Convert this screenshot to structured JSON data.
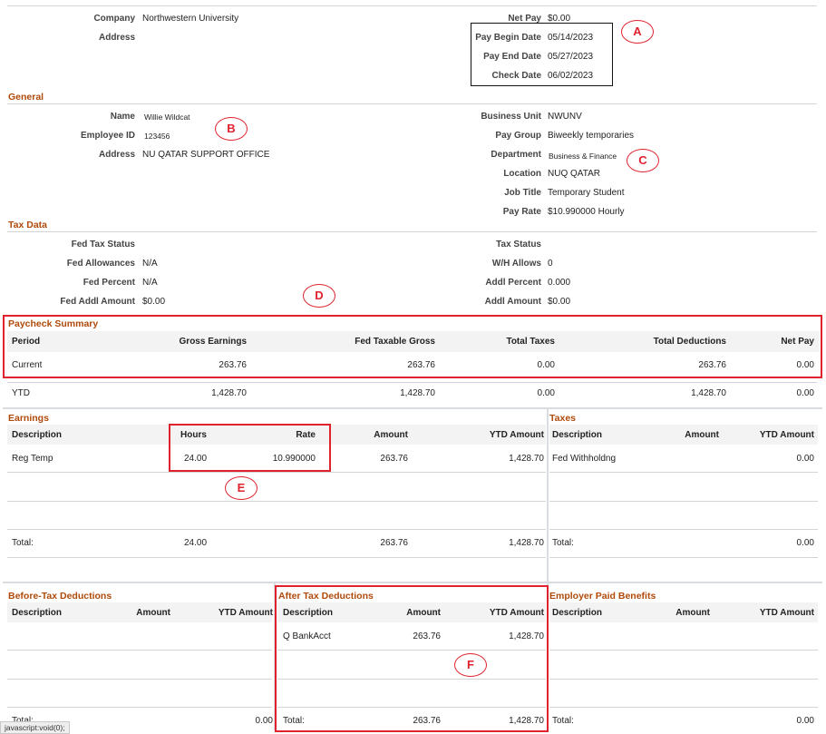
{
  "header": {
    "company_label": "Company",
    "company_value": "Northwestern University",
    "address_label": "Address",
    "address_value": "",
    "netpay_label": "Net Pay",
    "netpay_value": "$0.00",
    "pay_begin_label": "Pay Begin Date",
    "pay_begin_value": "05/14/2023",
    "pay_end_label": "Pay End Date",
    "pay_end_value": "05/27/2023",
    "check_date_label": "Check Date",
    "check_date_value": "06/02/2023"
  },
  "general": {
    "title": "General",
    "name_label": "Name",
    "name_value": "Willie Wildcat",
    "empid_label": "Employee ID",
    "empid_value": "123456",
    "address_label": "Address",
    "address_value": "NU QATAR SUPPORT OFFICE",
    "bu_label": "Business Unit",
    "bu_value": "NWUNV",
    "paygroup_label": "Pay Group",
    "paygroup_value": "Biweekly temporaries",
    "dept_label": "Department",
    "dept_value": "Business & Finance",
    "location_label": "Location",
    "location_value": "NUQ QATAR",
    "jobtitle_label": "Job Title",
    "jobtitle_value": "Temporary Student",
    "payrate_label": "Pay Rate",
    "payrate_value": "$10.990000 Hourly"
  },
  "taxdata": {
    "title": "Tax Data",
    "fedstatus_label": "Fed Tax Status",
    "fedstatus_value": "",
    "fedallow_label": "Fed Allowances",
    "fedallow_value": "N/A",
    "fedpct_label": "Fed Percent",
    "fedpct_value": "N/A",
    "fedaddl_label": "Fed Addl Amount",
    "fedaddl_value": "$0.00",
    "taxstatus_label": "Tax Status",
    "taxstatus_value": "",
    "whallow_label": "W/H Allows",
    "whallow_value": "0",
    "addlpct_label": "Addl Percent",
    "addlpct_value": "0.000",
    "addlamt_label": "Addl Amount",
    "addlamt_value": "$0.00"
  },
  "paycheck_summary": {
    "title": "Paycheck Summary",
    "headers": [
      "Period",
      "Gross Earnings",
      "Fed Taxable Gross",
      "Total Taxes",
      "Total Deductions",
      "Net Pay"
    ],
    "rows": [
      [
        "Current",
        "263.76",
        "263.76",
        "0.00",
        "263.76",
        "0.00"
      ],
      [
        "YTD",
        "1,428.70",
        "1,428.70",
        "0.00",
        "1,428.70",
        "0.00"
      ]
    ]
  },
  "earnings": {
    "title": "Earnings",
    "headers": [
      "Description",
      "Hours",
      "Rate",
      "Amount",
      "YTD Amount"
    ],
    "row": [
      "Reg Temp",
      "24.00",
      "10.990000",
      "263.76",
      "1,428.70"
    ],
    "total": [
      "Total:",
      "24.00",
      "263.76",
      "1,428.70"
    ]
  },
  "taxes": {
    "title": "Taxes",
    "headers": [
      "Description",
      "Amount",
      "YTD Amount"
    ],
    "row": [
      "Fed Withholdng",
      "0.00"
    ],
    "total": [
      "Total:",
      "0.00"
    ]
  },
  "before_tax": {
    "title": "Before-Tax Deductions",
    "headers": [
      "Description",
      "Amount",
      "YTD Amount"
    ],
    "total": [
      "Total:",
      "0.00"
    ]
  },
  "after_tax": {
    "title": "After Tax Deductions",
    "headers": [
      "Description",
      "Amount",
      "YTD Amount"
    ],
    "row": [
      "Q BankAcct",
      "263.76",
      "1,428.70"
    ],
    "total": [
      "Total:",
      "263.76",
      "1,428.70"
    ]
  },
  "employer_benefits": {
    "title": "Employer Paid Benefits",
    "headers": [
      "Description",
      "Amount",
      "YTD Amount"
    ],
    "total": [
      "Total:",
      "0.00"
    ]
  },
  "annotations": [
    "A",
    "B",
    "C",
    "D",
    "E",
    "F"
  ],
  "statusbar": "javascript:void(0);",
  "colors": {
    "section_title": "#b04a0a",
    "callout_red": "#e0212e",
    "callout_black": "#111111"
  }
}
